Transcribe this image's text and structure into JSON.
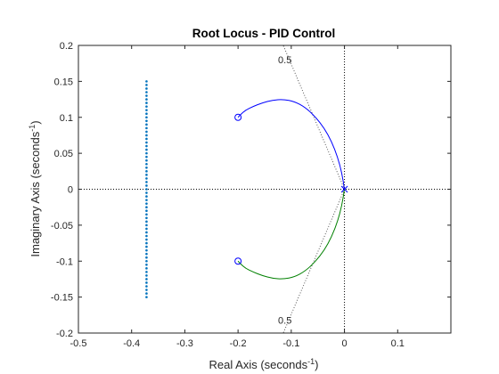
{
  "chart_data": {
    "type": "line",
    "title": "Root Locus - PID Control",
    "xlabel": {
      "prefix": "Real Axis (seconds",
      "exponent": "-1",
      "suffix": ")"
    },
    "ylabel": {
      "prefix": "Imaginary Axis (seconds",
      "exponent": "-1",
      "suffix": ")"
    },
    "xlim": [
      -0.5,
      0.2
    ],
    "ylim": [
      -0.2,
      0.2
    ],
    "xticks": [
      -0.5,
      -0.4,
      -0.3,
      -0.2,
      -0.1,
      0,
      0.1
    ],
    "xtick_labels": [
      "-0.5",
      "-0.4",
      "-0.3",
      "-0.2",
      "-0.1",
      "0",
      "0.1"
    ],
    "yticks": [
      -0.2,
      -0.15,
      -0.1,
      -0.05,
      0,
      0.05,
      0.1,
      0.15,
      0.2
    ],
    "ytick_labels": [
      "-0.2",
      "-0.15",
      "-0.1",
      "-0.05",
      "0",
      "0.05",
      "0.1",
      "0.15",
      "0.2"
    ],
    "grid": false,
    "series": [
      {
        "kind": "locus-branch",
        "color": "#0000ff",
        "points": [
          [
            0,
            0
          ],
          [
            -0.005,
            0.023
          ],
          [
            -0.013,
            0.045
          ],
          [
            -0.024,
            0.066
          ],
          [
            -0.038,
            0.085
          ],
          [
            -0.055,
            0.101
          ],
          [
            -0.074,
            0.114
          ],
          [
            -0.094,
            0.122
          ],
          [
            -0.115,
            0.125
          ],
          [
            -0.135,
            0.124
          ],
          [
            -0.155,
            0.12
          ],
          [
            -0.172,
            0.115
          ],
          [
            -0.186,
            0.11
          ],
          [
            -0.195,
            0.104
          ],
          [
            -0.2,
            0.1
          ]
        ]
      },
      {
        "kind": "locus-branch",
        "color": "#008000",
        "points": [
          [
            0,
            0
          ],
          [
            -0.005,
            -0.023
          ],
          [
            -0.013,
            -0.045
          ],
          [
            -0.024,
            -0.066
          ],
          [
            -0.038,
            -0.085
          ],
          [
            -0.055,
            -0.101
          ],
          [
            -0.074,
            -0.114
          ],
          [
            -0.094,
            -0.122
          ],
          [
            -0.115,
            -0.125
          ],
          [
            -0.135,
            -0.124
          ],
          [
            -0.155,
            -0.12
          ],
          [
            -0.172,
            -0.115
          ],
          [
            -0.186,
            -0.11
          ],
          [
            -0.195,
            -0.104
          ],
          [
            -0.2,
            -0.1
          ]
        ]
      },
      {
        "kind": "dotted-column",
        "color": "#0072bd",
        "x": -0.372,
        "y_from": -0.15,
        "y_to": 0.15,
        "step": 0.005
      }
    ],
    "poles": [
      [
        0,
        0
      ]
    ],
    "zeros": [
      [
        -0.2,
        0.1
      ],
      [
        -0.2,
        -0.1
      ]
    ],
    "damping_lines": [
      {
        "label": "0.5",
        "to": [
          -0.115,
          0.2
        ],
        "label_at": [
          -0.112,
          0.18
        ]
      },
      {
        "label": "0.5",
        "to": [
          -0.115,
          -0.2
        ],
        "label_at": [
          -0.112,
          -0.182
        ]
      }
    ],
    "colors": {
      "axes": "#262626",
      "zero_lines": "#000000",
      "damping": "#555555",
      "markers": "#0000ff"
    }
  }
}
